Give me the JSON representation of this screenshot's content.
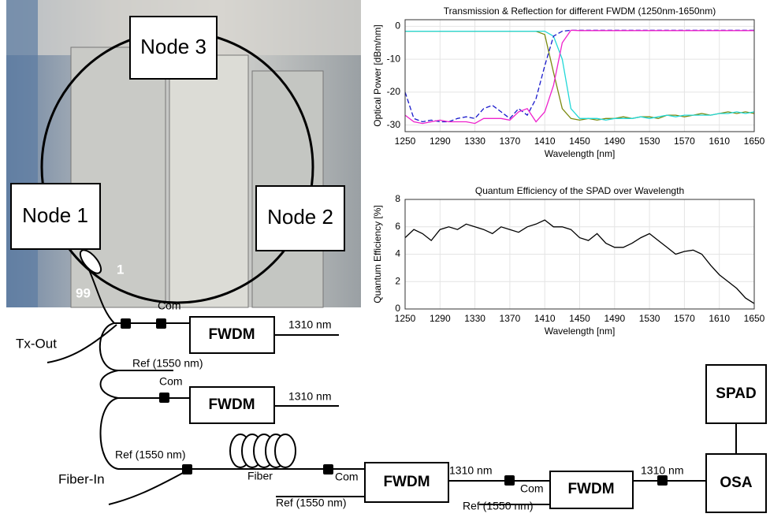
{
  "photo": {
    "nodes": [
      "Node 3",
      "Node 1",
      "Node 2"
    ],
    "split_labels": [
      "1",
      "99"
    ]
  },
  "chart_data": [
    {
      "type": "line",
      "title": "Transmission & Reflection for different FWDM (1250nm-1650nm)",
      "x_label": "Wavelength [nm]",
      "y_label": "Optical Power [dBm/nm]",
      "x": [
        1250,
        1260,
        1270,
        1280,
        1290,
        1300,
        1310,
        1320,
        1330,
        1340,
        1350,
        1360,
        1370,
        1380,
        1390,
        1400,
        1410,
        1420,
        1430,
        1440,
        1450,
        1460,
        1470,
        1480,
        1490,
        1500,
        1510,
        1520,
        1530,
        1540,
        1550,
        1560,
        1570,
        1580,
        1590,
        1600,
        1610,
        1620,
        1630,
        1640,
        1650
      ],
      "xlim": [
        1250,
        1650
      ],
      "xticks": [
        1250,
        1290,
        1330,
        1370,
        1410,
        1450,
        1490,
        1530,
        1570,
        1610,
        1650
      ],
      "ylim": [
        -32,
        2
      ],
      "yticks": [
        0,
        -10,
        -20,
        -30
      ],
      "grid": true,
      "series": [
        {
          "color": "#7a8a10",
          "dashed": false,
          "values": [
            -1.5,
            -1.5,
            -1.5,
            -1.5,
            -1.5,
            -1.5,
            -1.5,
            -1.5,
            -1.5,
            -1.5,
            -1.5,
            -1.5,
            -1.5,
            -1.5,
            -1.5,
            -1.5,
            -2.5,
            -14,
            -25,
            -28,
            -28.5,
            -28,
            -28.5,
            -28,
            -28,
            -27.5,
            -28,
            -27.5,
            -27.5,
            -28,
            -27,
            -27,
            -27.5,
            -27,
            -26.5,
            -27,
            -26.5,
            -26,
            -26.5,
            -26,
            -26.5
          ]
        },
        {
          "color": "#22d8d8",
          "dashed": false,
          "values": [
            -1.5,
            -1.5,
            -1.5,
            -1.5,
            -1.5,
            -1.5,
            -1.5,
            -1.5,
            -1.5,
            -1.5,
            -1.5,
            -1.5,
            -1.5,
            -1.5,
            -1.5,
            -1.5,
            -1.5,
            -3,
            -10,
            -25,
            -28,
            -28,
            -28,
            -28.5,
            -28,
            -28,
            -28,
            -27.5,
            -28,
            -27.5,
            -27,
            -27.5,
            -27,
            -27,
            -27,
            -27,
            -26.5,
            -26.5,
            -26,
            -26.5,
            -26
          ]
        },
        {
          "color": "#1a1acc",
          "dashed": true,
          "values": [
            -20,
            -28,
            -29,
            -28.5,
            -29,
            -29,
            -28,
            -27.5,
            -28,
            -25,
            -24,
            -26,
            -28,
            -25,
            -27,
            -22,
            -12,
            -3,
            -1.5,
            -1.2,
            -1.2,
            -1.2,
            -1.2,
            -1.2,
            -1.2,
            -1.2,
            -1.2,
            -1.2,
            -1.2,
            -1.2,
            -1.2,
            -1.2,
            -1.2,
            -1.2,
            -1.2,
            -1.2,
            -1.2,
            -1.2,
            -1.2,
            -1.2,
            -1.2
          ]
        },
        {
          "color": "#ee22cc",
          "dashed": false,
          "values": [
            -27,
            -29,
            -29.5,
            -29,
            -28.5,
            -29,
            -29,
            -29,
            -29.5,
            -28,
            -28,
            -28,
            -28.5,
            -26,
            -25,
            -29,
            -26,
            -18,
            -5,
            -1.2,
            -1.3,
            -1.3,
            -1.3,
            -1.3,
            -1.3,
            -1.3,
            -1.3,
            -1.3,
            -1.3,
            -1.3,
            -1.3,
            -1.3,
            -1.3,
            -1.3,
            -1.3,
            -1.3,
            -1.3,
            -1.3,
            -1.3,
            -1.3,
            -1.3
          ]
        }
      ]
    },
    {
      "type": "line",
      "title": "Quantum Efficiency of the SPAD over Wavelength",
      "x_label": "Wavelength [nm]",
      "y_label": "Quantum Efficiency [%]",
      "x": [
        1250,
        1260,
        1270,
        1280,
        1290,
        1300,
        1310,
        1320,
        1330,
        1340,
        1350,
        1360,
        1370,
        1380,
        1390,
        1400,
        1410,
        1420,
        1430,
        1440,
        1450,
        1460,
        1470,
        1480,
        1490,
        1500,
        1510,
        1520,
        1530,
        1540,
        1550,
        1560,
        1570,
        1580,
        1590,
        1600,
        1610,
        1620,
        1630,
        1640,
        1650
      ],
      "xlim": [
        1250,
        1650
      ],
      "xticks": [
        1250,
        1290,
        1330,
        1370,
        1410,
        1450,
        1490,
        1530,
        1570,
        1610,
        1650
      ],
      "ylim": [
        0,
        8
      ],
      "yticks": [
        0,
        2,
        4,
        6,
        8
      ],
      "grid": true,
      "series": [
        {
          "color": "#000000",
          "dashed": false,
          "values": [
            5.2,
            5.8,
            5.5,
            5.0,
            5.8,
            6.0,
            5.8,
            6.2,
            6.0,
            5.8,
            5.5,
            6.0,
            5.8,
            5.6,
            6.0,
            6.2,
            6.5,
            6.0,
            6.0,
            5.8,
            5.2,
            5.0,
            5.5,
            4.8,
            4.5,
            4.5,
            4.8,
            5.2,
            5.5,
            5.0,
            4.5,
            4.0,
            4.2,
            4.3,
            4.0,
            3.2,
            2.5,
            2.0,
            1.5,
            0.8,
            0.4
          ]
        }
      ]
    }
  ],
  "diagram": {
    "boxes": [
      "FWDM",
      "FWDM",
      "FWDM",
      "FWDM",
      "SPAD",
      "OSA"
    ],
    "com": [
      "Com",
      "Com",
      "Com",
      "Com"
    ],
    "pass": [
      "1310 nm",
      "1310 nm",
      "1310 nm",
      "1310 nm"
    ],
    "ref": [
      "Ref (1550 nm)",
      "Ref (1550 nm)",
      "Ref (1550 nm)",
      "Ref (1550 nm)"
    ],
    "tx_out": "Tx-Out",
    "fiber_in": "Fiber-In",
    "fiber": "Fiber"
  }
}
